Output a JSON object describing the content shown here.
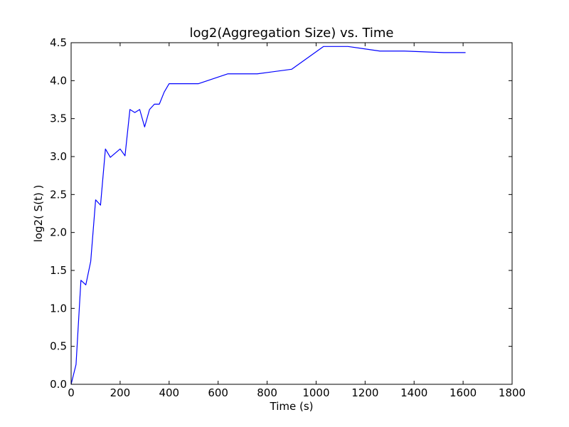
{
  "chart_data": {
    "type": "line",
    "title": "log2(Aggregation Size)  vs. Time",
    "xlabel": "Time (s)",
    "ylabel": "log2( S(t) )",
    "xlim": [
      0,
      1800
    ],
    "ylim": [
      0.0,
      4.5
    ],
    "x_ticks": [
      0,
      200,
      400,
      600,
      800,
      1000,
      1200,
      1400,
      1600,
      1800
    ],
    "x_tick_labels": [
      "0",
      "200",
      "400",
      "600",
      "800",
      "1000",
      "1200",
      "1400",
      "1600",
      "1800"
    ],
    "y_ticks": [
      0.0,
      0.5,
      1.0,
      1.5,
      2.0,
      2.5,
      3.0,
      3.5,
      4.0,
      4.5
    ],
    "y_tick_labels": [
      "0.0",
      "0.5",
      "1.0",
      "1.5",
      "2.0",
      "2.5",
      "3.0",
      "3.5",
      "4.0",
      "4.5"
    ],
    "grid": false,
    "series": [
      {
        "color": "#0000ff",
        "points": [
          [
            0,
            0.0
          ],
          [
            20,
            0.26
          ],
          [
            40,
            1.37
          ],
          [
            60,
            1.31
          ],
          [
            80,
            1.62
          ],
          [
            100,
            2.43
          ],
          [
            120,
            2.36
          ],
          [
            140,
            3.1
          ],
          [
            160,
            2.99
          ],
          [
            200,
            3.1
          ],
          [
            220,
            3.01
          ],
          [
            240,
            3.62
          ],
          [
            260,
            3.58
          ],
          [
            280,
            3.62
          ],
          [
            300,
            3.39
          ],
          [
            320,
            3.62
          ],
          [
            340,
            3.69
          ],
          [
            360,
            3.69
          ],
          [
            380,
            3.85
          ],
          [
            400,
            3.96
          ],
          [
            520,
            3.96
          ],
          [
            640,
            4.09
          ],
          [
            760,
            4.09
          ],
          [
            900,
            4.15
          ],
          [
            1030,
            4.45
          ],
          [
            1130,
            4.45
          ],
          [
            1260,
            4.39
          ],
          [
            1360,
            4.39
          ],
          [
            1520,
            4.37
          ],
          [
            1610,
            4.37
          ]
        ]
      }
    ]
  }
}
